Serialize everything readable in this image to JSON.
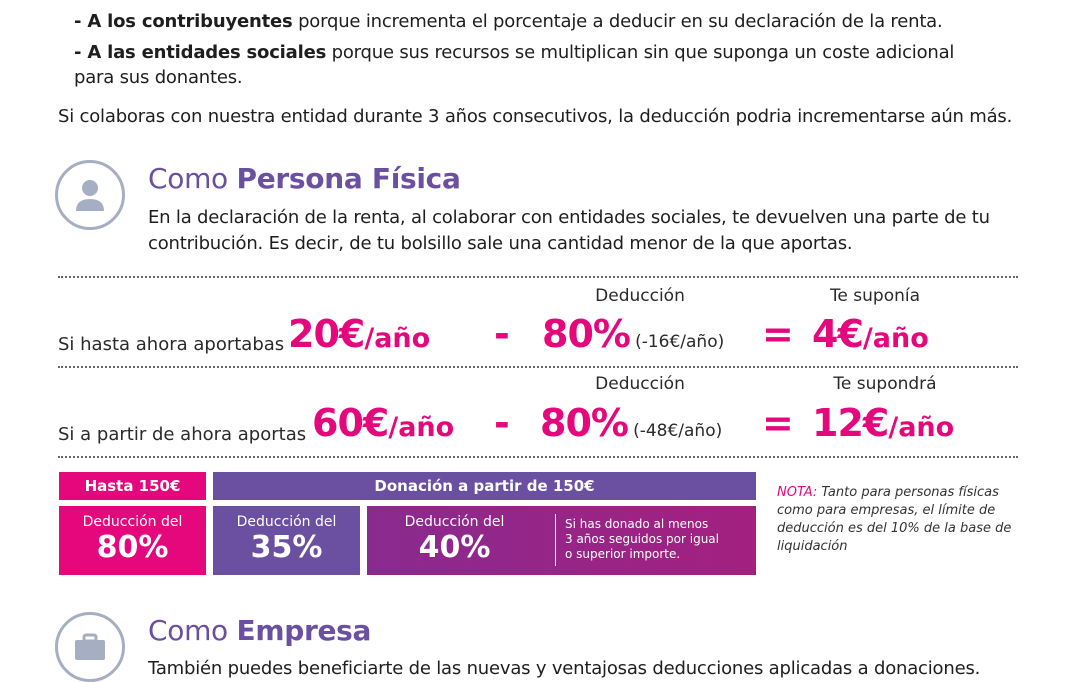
{
  "intro": {
    "bullet1_bold": "- A los contribuyentes",
    "bullet1_rest": " porque incrementa el porcentaje a deducir en su declaración de la renta.",
    "bullet2_bold": "- A las entidades sociales",
    "bullet2_rest": " porque sus recursos se multiplican sin que suponga un coste adicional",
    "bullet2_rest2": "para sus donantes.",
    "consecutive": "Si colaboras con nuestra entidad durante 3 años consecutivos, la deducción podria incrementarse aún más."
  },
  "persona": {
    "title_pre": "Como ",
    "title_bold": "Persona Física",
    "desc1": "En la declaración de la renta, al colaborar con entidades sociales, te devuelven una parte de tu",
    "desc2": "contribución. Es decir, de tu bolsillo sale una cantidad menor de la que aportas.",
    "icon": "user-icon"
  },
  "row1": {
    "col_deduccion": "Deducción",
    "col_result": "Te suponía",
    "label": "Si hasta ahora aportabas",
    "amount": "20€",
    "amount_unit": "/año",
    "minus": "-",
    "percent": "80%",
    "paren": "(-16€/año)",
    "equals": "=",
    "result": "4€",
    "result_unit": "/año"
  },
  "row2": {
    "col_deduccion": "Deducción",
    "col_result": "Te supondrá",
    "label": "Si a partir de ahora aportas",
    "amount": "60€",
    "amount_unit": "/año",
    "minus": "-",
    "percent": "80%",
    "paren": "(-48€/año)",
    "equals": "=",
    "result": "12€",
    "result_unit": "/año"
  },
  "table": {
    "hasta_hdr": "Hasta 150€",
    "donacion_hdr": "Donación a partir de 150€",
    "cell1_small": "Deducción del",
    "cell1_big": "80%",
    "cell2_small": "Deducción del",
    "cell2_big": "35%",
    "cell3_small": "Deducción del",
    "cell3_big": "40%",
    "cell3_note1": "Si has donado al menos",
    "cell3_note2": "3 años seguidos por igual",
    "cell3_note3": "o superior importe."
  },
  "note": {
    "label": "NOTA:",
    "line1": " Tanto para personas físicas",
    "line2": "como para empresas, el límite de",
    "line3": "deducción es del 10% de la base de",
    "line4": "liquidación"
  },
  "empresa": {
    "title_pre": "Como ",
    "title_bold": "Empresa",
    "desc1": "También puedes beneficiarte de las nuevas y ventajosas deducciones aplicadas a donaciones.",
    "icon": "briefcase-icon"
  },
  "colors": {
    "magenta": "#e5087d",
    "purple": "#6b4fa1",
    "dark_purple": "#8e1f8b",
    "icon_gray": "#a6aec3"
  }
}
